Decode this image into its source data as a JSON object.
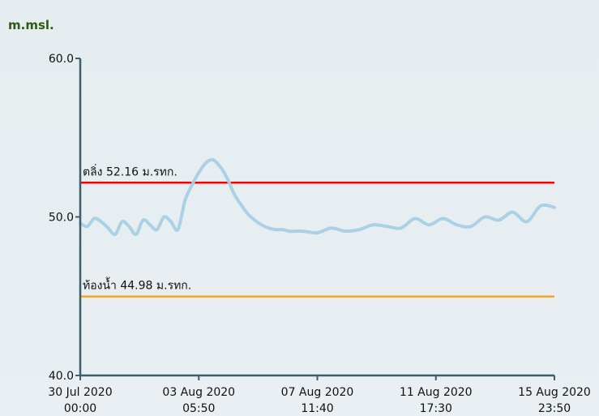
{
  "unit_label": "m.msl.",
  "colors": {
    "axis": "#3c5f6c",
    "bank_line": "#ff0000",
    "bed_line": "#f5a623",
    "series": "#a8cfe4"
  },
  "chart_data": {
    "type": "line",
    "title": "",
    "xlabel": "",
    "ylabel": "m.msl.",
    "ylim": [
      40,
      60
    ],
    "xlim": [
      "2020-07-30 00:00",
      "2020-08-15 23:50"
    ],
    "yticks": [
      "40.0",
      "50.0",
      "60.0"
    ],
    "xticks": [
      {
        "date": "30 Jul 2020",
        "time": "00:00"
      },
      {
        "date": "03 Aug 2020",
        "time": "05:50"
      },
      {
        "date": "07 Aug 2020",
        "time": "11:40"
      },
      {
        "date": "11 Aug 2020",
        "time": "17:30"
      },
      {
        "date": "15 Aug 2020",
        "time": "23:50"
      }
    ],
    "reference_lines": [
      {
        "label": "ตลิ่ง 52.16 ม.รทก.",
        "value": 52.16,
        "color": "#ff0000"
      },
      {
        "label": "ท้องน้ำ 44.98 ม.รทก.",
        "value": 44.98,
        "color": "#f5a623"
      }
    ],
    "series": [
      {
        "color": "#a8cfe4",
        "x": [
          "2020-07-30 00:00",
          "2020-07-30 06:00",
          "2020-07-30 12:00",
          "2020-07-30 18:00",
          "2020-07-31 00:00",
          "2020-07-31 06:00",
          "2020-07-31 12:00",
          "2020-07-31 18:00",
          "2020-08-01 00:00",
          "2020-08-01 06:00",
          "2020-08-01 12:00",
          "2020-08-01 18:00",
          "2020-08-02 00:00",
          "2020-08-02 06:00",
          "2020-08-02 12:00",
          "2020-08-02 18:00",
          "2020-08-03 00:00",
          "2020-08-03 06:00",
          "2020-08-03 12:00",
          "2020-08-03 18:00",
          "2020-08-04 00:00",
          "2020-08-04 06:00",
          "2020-08-04 12:00",
          "2020-08-04 18:00",
          "2020-08-05 00:00",
          "2020-08-05 06:00",
          "2020-08-05 12:00",
          "2020-08-05 18:00",
          "2020-08-06 00:00",
          "2020-08-06 06:00",
          "2020-08-06 12:00",
          "2020-08-06 18:00",
          "2020-08-07 00:00",
          "2020-08-07 12:00",
          "2020-08-08 00:00",
          "2020-08-08 12:00",
          "2020-08-09 00:00",
          "2020-08-09 12:00",
          "2020-08-10 00:00",
          "2020-08-10 12:00",
          "2020-08-11 00:00",
          "2020-08-11 12:00",
          "2020-08-12 00:00",
          "2020-08-12 12:00",
          "2020-08-13 00:00",
          "2020-08-13 12:00",
          "2020-08-14 00:00",
          "2020-08-14 12:00",
          "2020-08-15 00:00",
          "2020-08-15 12:00",
          "2020-08-15 23:50"
        ],
        "y": [
          49.6,
          49.4,
          49.9,
          49.7,
          49.3,
          48.9,
          49.7,
          49.4,
          48.9,
          49.8,
          49.5,
          49.2,
          50.0,
          49.7,
          49.2,
          51.0,
          52.0,
          52.8,
          53.4,
          53.6,
          53.2,
          52.5,
          51.5,
          50.8,
          50.2,
          49.8,
          49.5,
          49.3,
          49.2,
          49.2,
          49.1,
          49.1,
          49.1,
          49.0,
          49.3,
          49.1,
          49.2,
          49.5,
          49.4,
          49.3,
          49.9,
          49.5,
          49.9,
          49.5,
          49.4,
          50.0,
          49.8,
          50.3,
          49.7,
          50.7,
          50.6
        ]
      }
    ]
  }
}
